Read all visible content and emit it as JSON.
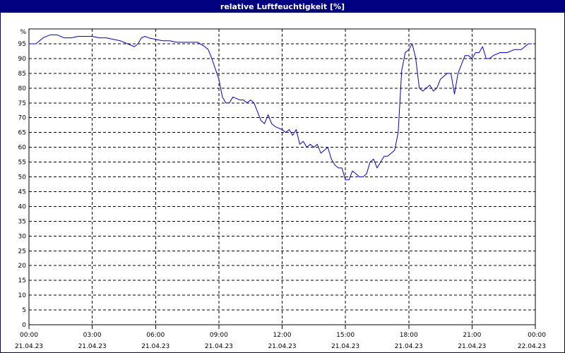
{
  "chart_data": {
    "type": "line",
    "title": "relative Luftfeuchtigkeit [%]",
    "y_unit": "%",
    "ylim": [
      0,
      100
    ],
    "y_ticks": [
      "95",
      "90",
      "85",
      "80",
      "75",
      "70",
      "65",
      "60",
      "55",
      "50",
      "45",
      "40",
      "35",
      "30",
      "25",
      "20",
      "15",
      "10",
      "5",
      "0"
    ],
    "x_ticks": [
      {
        "time": "00:00",
        "date": "21.04.23"
      },
      {
        "time": "03:00",
        "date": "21.04.23"
      },
      {
        "time": "06:00",
        "date": "21.04.23"
      },
      {
        "time": "09:00",
        "date": "21.04.23"
      },
      {
        "time": "12:00",
        "date": "21.04.23"
      },
      {
        "time": "15:00",
        "date": "21.04.23"
      },
      {
        "time": "18:00",
        "date": "21.04.23"
      },
      {
        "time": "21:00",
        "date": "21.04.23"
      },
      {
        "time": "00:00",
        "date": "22.04.23"
      }
    ],
    "grid": true,
    "line_color": "#0000cc",
    "series": [
      {
        "x": [
          "21.04.23 00:00",
          "21.04.23 00:20",
          "21.04.23 00:40",
          "21.04.23 01:00",
          "21.04.23 01:20",
          "21.04.23 01:40",
          "21.04.23 02:00",
          "21.04.23 02:20",
          "21.04.23 02:40",
          "21.04.23 03:00",
          "21.04.23 03:20",
          "21.04.23 03:40",
          "21.04.23 04:00",
          "21.04.23 04:20",
          "21.04.23 04:40",
          "21.04.23 05:00",
          "21.04.23 05:10",
          "21.04.23 05:20",
          "21.04.23 05:30",
          "21.04.23 05:40",
          "21.04.23 06:00",
          "21.04.23 06:20",
          "21.04.23 06:40",
          "21.04.23 07:00",
          "21.04.23 07:20",
          "21.04.23 07:40",
          "21.04.23 08:00",
          "21.04.23 08:20",
          "21.04.23 08:30",
          "21.04.23 08:40",
          "21.04.23 09:00",
          "21.04.23 09:10",
          "21.04.23 09:20",
          "21.04.23 09:30",
          "21.04.23 09:40",
          "21.04.23 10:00",
          "21.04.23 10:10",
          "21.04.23 10:20",
          "21.04.23 10:30",
          "21.04.23 10:40",
          "21.04.23 10:50",
          "21.04.23 11:00",
          "21.04.23 11:10",
          "21.04.23 11:20",
          "21.04.23 11:30",
          "21.04.23 11:40",
          "21.04.23 11:50",
          "21.04.23 12:00",
          "21.04.23 12:10",
          "21.04.23 12:20",
          "21.04.23 12:30",
          "21.04.23 12:40",
          "21.04.23 12:50",
          "21.04.23 13:00",
          "21.04.23 13:10",
          "21.04.23 13:20",
          "21.04.23 13:30",
          "21.04.23 13:40",
          "21.04.23 13:50",
          "21.04.23 14:00",
          "21.04.23 14:10",
          "21.04.23 14:20",
          "21.04.23 14:30",
          "21.04.23 14:40",
          "21.04.23 14:50",
          "21.04.23 15:00",
          "21.04.23 15:10",
          "21.04.23 15:20",
          "21.04.23 15:30",
          "21.04.23 15:40",
          "21.04.23 15:50",
          "21.04.23 16:00",
          "21.04.23 16:10",
          "21.04.23 16:20",
          "21.04.23 16:30",
          "21.04.23 16:40",
          "21.04.23 16:50",
          "21.04.23 17:00",
          "21.04.23 17:10",
          "21.04.23 17:20",
          "21.04.23 17:30",
          "21.04.23 17:40",
          "21.04.23 17:50",
          "21.04.23 18:00",
          "21.04.23 18:10",
          "21.04.23 18:20",
          "21.04.23 18:30",
          "21.04.23 18:40",
          "21.04.23 18:50",
          "21.04.23 19:00",
          "21.04.23 19:10",
          "21.04.23 19:20",
          "21.04.23 19:30",
          "21.04.23 19:40",
          "21.04.23 19:50",
          "21.04.23 20:00",
          "21.04.23 20:10",
          "21.04.23 20:20",
          "21.04.23 20:30",
          "21.04.23 20:40",
          "21.04.23 20:50",
          "21.04.23 21:00",
          "21.04.23 21:10",
          "21.04.23 21:20",
          "21.04.23 21:30",
          "21.04.23 21:40",
          "21.04.23 21:50",
          "21.04.23 22:00",
          "21.04.23 22:20",
          "21.04.23 22:40",
          "21.04.23 23:00",
          "21.04.23 23:20",
          "21.04.23 23:40",
          "21.04.23 23:50"
        ],
        "values": [
          95,
          95,
          97,
          98,
          98,
          97,
          97,
          97.5,
          97.5,
          97.5,
          97,
          97,
          96.5,
          96,
          95,
          94,
          95,
          97,
          97.5,
          97,
          96.5,
          96,
          96,
          95.5,
          95.5,
          95.5,
          95.5,
          94,
          93,
          90,
          83,
          77,
          75,
          75,
          77,
          76,
          76,
          75,
          76,
          75,
          72,
          69,
          68,
          71,
          68,
          67,
          66.5,
          66,
          65,
          66,
          64,
          66,
          61,
          62,
          60,
          61,
          60,
          61,
          58,
          59,
          60,
          56,
          54,
          53,
          53,
          49,
          49,
          52,
          51,
          50,
          50,
          51,
          55,
          56,
          53,
          55,
          57,
          57,
          58,
          59,
          65,
          86,
          92,
          93,
          95,
          90,
          80,
          79,
          80,
          81,
          79,
          80,
          83,
          84,
          85,
          85,
          78,
          85,
          88,
          91,
          91,
          90,
          92,
          92,
          94,
          90,
          90,
          91,
          92,
          92,
          93,
          93,
          95,
          95
        ]
      }
    ]
  }
}
